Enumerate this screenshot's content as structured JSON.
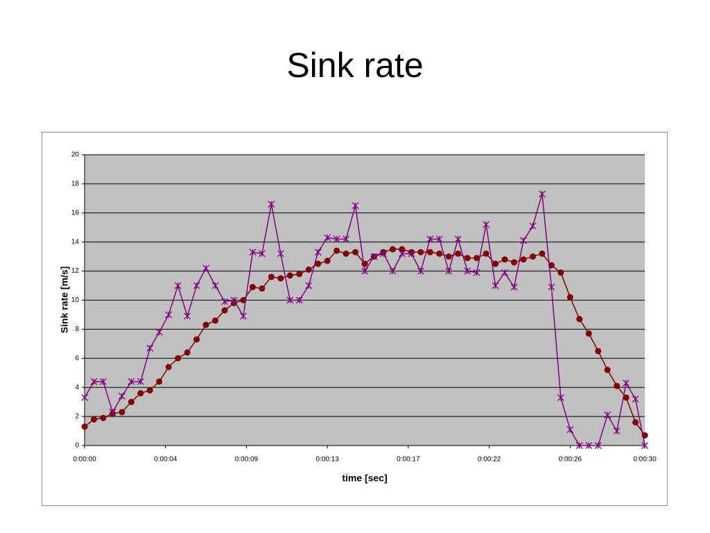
{
  "chart_data": {
    "type": "line",
    "title": "Sink rate",
    "x_label": "time [sec]",
    "y_label": "Sink rate [m/s]",
    "x": [
      0,
      0.5,
      1,
      1.5,
      2,
      2.5,
      3,
      3.5,
      4,
      4.5,
      5,
      5.5,
      6,
      6.5,
      7,
      7.5,
      8,
      8.5,
      9,
      9.5,
      10,
      10.5,
      11,
      11.5,
      12,
      12.5,
      13,
      13.5,
      14,
      14.5,
      15,
      15.5,
      16,
      16.5,
      17,
      17.5,
      18,
      18.5,
      19,
      19.5,
      20,
      20.5,
      21,
      21.5,
      22,
      22.5,
      23,
      23.5,
      24,
      24.5,
      25,
      25.5,
      26,
      26.5,
      27,
      27.5,
      28,
      28.5,
      29,
      29.5,
      30
    ],
    "series": [
      {
        "color": "#800000",
        "marker": "circle",
        "values": [
          1.3,
          1.8,
          1.9,
          2.2,
          2.3,
          3.0,
          3.6,
          3.8,
          4.4,
          5.4,
          6.0,
          6.4,
          7.3,
          8.3,
          8.6,
          9.3,
          9.8,
          10.0,
          10.9,
          10.8,
          11.6,
          11.5,
          11.7,
          11.8,
          12.1,
          12.5,
          12.7,
          13.4,
          13.2,
          13.3,
          12.5,
          13.0,
          13.3,
          13.5,
          13.5,
          13.3,
          13.3,
          13.3,
          13.2,
          13.0,
          13.2,
          12.9,
          12.9,
          13.2,
          12.5,
          12.8,
          12.6,
          12.8,
          13.0,
          13.2,
          12.4,
          11.9,
          10.2,
          8.7,
          7.7,
          6.5,
          5.2,
          4.1,
          3.3,
          1.6,
          0.7
        ]
      },
      {
        "color": "#800080",
        "marker": "asterisk",
        "values": [
          3.3,
          4.4,
          4.4,
          2.3,
          3.4,
          4.4,
          4.4,
          6.7,
          7.8,
          9.0,
          11.0,
          8.9,
          11.0,
          12.2,
          11.0,
          9.9,
          10.0,
          8.9,
          13.3,
          13.2,
          16.6,
          13.2,
          10.0,
          10.0,
          11.0,
          13.3,
          14.3,
          14.2,
          14.2,
          16.5,
          12.0,
          13.0,
          13.2,
          12.0,
          13.2,
          13.2,
          12.0,
          14.2,
          14.2,
          12.0,
          14.2,
          12.0,
          11.9,
          15.2,
          11.0,
          11.9,
          10.9,
          14.1,
          15.1,
          17.3,
          10.9,
          3.3,
          1.1,
          0,
          0,
          0,
          2.1,
          1.0,
          4.3,
          3.2,
          0
        ]
      }
    ],
    "xlim": [
      0,
      30
    ],
    "xticks": [
      {
        "value": 0,
        "label": "0:00:00"
      },
      {
        "value": 4.333,
        "label": "0:00:04"
      },
      {
        "value": 8.667,
        "label": "0:00:09"
      },
      {
        "value": 13,
        "label": "0:00:13"
      },
      {
        "value": 17.333,
        "label": "0:00:17"
      },
      {
        "value": 21.667,
        "label": "0:00:22"
      },
      {
        "value": 26,
        "label": "0:00:26"
      },
      {
        "value": 30,
        "label": "0:00:30"
      }
    ],
    "ylim": [
      0,
      20
    ],
    "yticks": [
      0,
      2,
      4,
      6,
      8,
      10,
      12,
      14,
      16,
      18,
      20
    ],
    "grid": true,
    "plot_background": "#c0c0c0"
  }
}
